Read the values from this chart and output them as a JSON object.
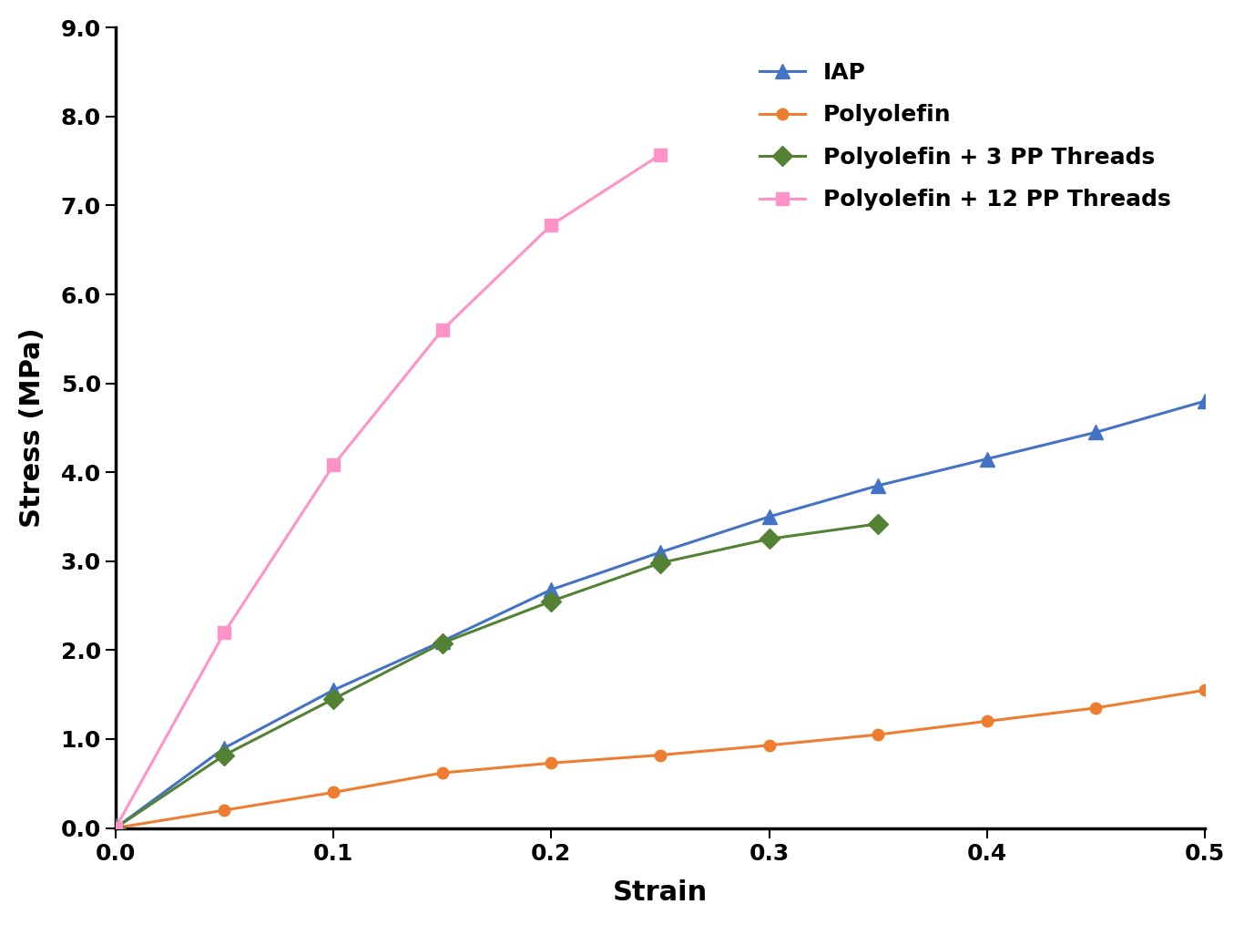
{
  "xlabel": "Strain",
  "ylabel": "Stress (MPa)",
  "xlim": [
    0.0,
    0.5
  ],
  "ylim": [
    0.0,
    9.0
  ],
  "xticks": [
    0.0,
    0.1,
    0.2,
    0.3,
    0.4,
    0.5
  ],
  "yticks": [
    0.0,
    1.0,
    2.0,
    3.0,
    4.0,
    5.0,
    6.0,
    7.0,
    8.0,
    9.0
  ],
  "IAP": {
    "x": [
      0.0,
      0.05,
      0.1,
      0.15,
      0.2,
      0.25,
      0.3,
      0.35,
      0.4,
      0.45,
      0.5
    ],
    "y": [
      0.0,
      0.9,
      1.55,
      2.1,
      2.68,
      3.1,
      3.5,
      3.85,
      4.15,
      4.45,
      4.8
    ],
    "color": "#4472C4",
    "marker": "^",
    "label": "IAP",
    "linewidth": 2.2,
    "markersize": 11
  },
  "Polyolefin": {
    "x": [
      0.0,
      0.05,
      0.1,
      0.15,
      0.2,
      0.25,
      0.3,
      0.35,
      0.4,
      0.45,
      0.5
    ],
    "y": [
      0.0,
      0.2,
      0.4,
      0.62,
      0.73,
      0.82,
      0.93,
      1.05,
      1.2,
      1.35,
      1.55
    ],
    "color": "#ED7D31",
    "marker": "o",
    "label": "Polyolefin",
    "linewidth": 2.2,
    "markersize": 9
  },
  "Polyolefin3": {
    "x": [
      0.0,
      0.05,
      0.1,
      0.15,
      0.2,
      0.25,
      0.3,
      0.35
    ],
    "y": [
      0.0,
      0.82,
      1.45,
      2.08,
      2.55,
      2.98,
      3.25,
      3.42
    ],
    "color": "#548235",
    "marker": "D",
    "label": "Polyolefin + 3 PP Threads",
    "linewidth": 2.2,
    "markersize": 11
  },
  "Polyolefin12": {
    "x": [
      0.0,
      0.05,
      0.1,
      0.15,
      0.2,
      0.25
    ],
    "y": [
      0.0,
      2.2,
      4.08,
      5.6,
      6.78,
      7.57
    ],
    "color": "#FF92C7",
    "marker": "s",
    "label": "Polyolefin + 12 PP Threads",
    "linewidth": 2.2,
    "markersize": 10
  },
  "background_color": "#FFFFFF",
  "tick_fontsize": 18,
  "label_fontsize": 22,
  "legend_fontsize": 18,
  "spine_linewidth": 2.5
}
